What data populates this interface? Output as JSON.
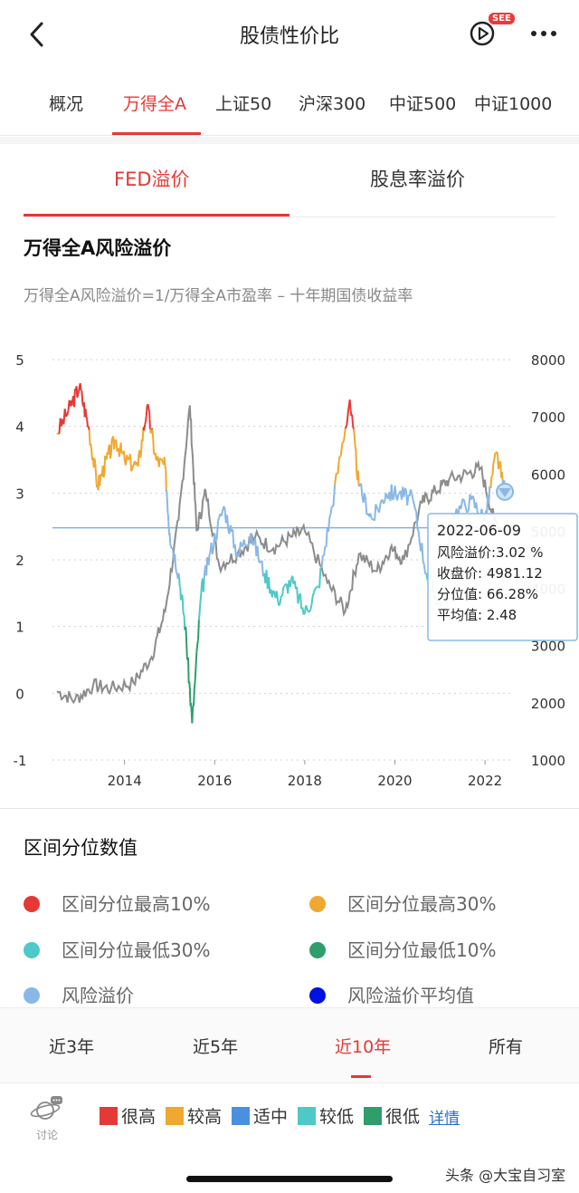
{
  "header": {
    "title": "股债性价比",
    "see_badge": "SEE"
  },
  "index_tabs": [
    "概况",
    "万得全A",
    "上证50",
    "沪深300",
    "中证500",
    "中证1000"
  ],
  "sub_tabs": [
    "FED溢价",
    "股息率溢价"
  ],
  "section": {
    "title": "万得全A风险溢价",
    "formula": "万得全A风险溢价=1/万得全A市盈率 – 十年期国债收益率"
  },
  "chart_data": {
    "type": "line",
    "x_ticks": [
      "2014",
      "2016",
      "2018",
      "2020",
      "2022"
    ],
    "y_left_ticks": [
      "5",
      "4",
      "3",
      "2",
      "1",
      "0",
      "-1"
    ],
    "y_right_ticks": [
      "8000",
      "7000",
      "6000",
      "5000",
      "4000",
      "3000",
      "2000",
      "1000"
    ],
    "y_left_range": [
      -1,
      5
    ],
    "y_right_range": [
      1000,
      8000
    ],
    "average": 2.48,
    "series": [
      {
        "name": "风险溢价",
        "points": [
          [
            2012.5,
            3.9
          ],
          [
            2012.8,
            4.3
          ],
          [
            2013.0,
            4.6
          ],
          [
            2013.2,
            4.0
          ],
          [
            2013.4,
            3.1
          ],
          [
            2013.6,
            3.5
          ],
          [
            2013.8,
            3.8
          ],
          [
            2014.0,
            3.5
          ],
          [
            2014.3,
            3.4
          ],
          [
            2014.5,
            4.3
          ],
          [
            2014.7,
            3.5
          ],
          [
            2014.9,
            3.4
          ],
          [
            2015.0,
            2.4
          ],
          [
            2015.2,
            1.8
          ],
          [
            2015.35,
            1.0
          ],
          [
            2015.5,
            -0.45
          ],
          [
            2015.7,
            1.5
          ],
          [
            2015.9,
            2.1
          ],
          [
            2016.2,
            2.8
          ],
          [
            2016.5,
            2.1
          ],
          [
            2016.8,
            2.4
          ],
          [
            2017.1,
            1.8
          ],
          [
            2017.4,
            1.4
          ],
          [
            2017.7,
            1.7
          ],
          [
            2018.0,
            1.2
          ],
          [
            2018.3,
            1.6
          ],
          [
            2018.6,
            2.8
          ],
          [
            2019.0,
            4.4
          ],
          [
            2019.2,
            3.1
          ],
          [
            2019.5,
            2.6
          ],
          [
            2019.8,
            3.0
          ],
          [
            2020.1,
            3.0
          ],
          [
            2020.4,
            2.9
          ],
          [
            2020.7,
            1.8
          ],
          [
            2021.0,
            1.3
          ],
          [
            2021.3,
            2.7
          ],
          [
            2021.7,
            2.9
          ],
          [
            2022.0,
            2.6
          ],
          [
            2022.25,
            3.6
          ],
          [
            2022.44,
            3.02
          ]
        ]
      },
      {
        "name": "收盘价",
        "points": [
          [
            2012.5,
            2200
          ],
          [
            2012.9,
            2050
          ],
          [
            2013.3,
            2300
          ],
          [
            2013.7,
            2250
          ],
          [
            2014.2,
            2350
          ],
          [
            2014.6,
            2800
          ],
          [
            2014.9,
            3600
          ],
          [
            2015.2,
            5200
          ],
          [
            2015.45,
            7200
          ],
          [
            2015.6,
            5000
          ],
          [
            2015.8,
            5700
          ],
          [
            2016.1,
            4400
          ],
          [
            2016.5,
            4600
          ],
          [
            2016.9,
            4900
          ],
          [
            2017.3,
            4700
          ],
          [
            2017.7,
            4900
          ],
          [
            2018.0,
            5000
          ],
          [
            2018.5,
            4100
          ],
          [
            2018.9,
            3600
          ],
          [
            2019.2,
            4600
          ],
          [
            2019.6,
            4300
          ],
          [
            2019.9,
            4700
          ],
          [
            2020.2,
            4500
          ],
          [
            2020.6,
            5500
          ],
          [
            2020.9,
            5700
          ],
          [
            2021.2,
            5900
          ],
          [
            2021.6,
            6000
          ],
          [
            2021.9,
            6100
          ],
          [
            2022.2,
            5200
          ],
          [
            2022.44,
            4981.12
          ]
        ]
      }
    ],
    "tooltip": {
      "date": "2022-06-09",
      "lines": [
        "风险溢价:3.02 %",
        "收盘价:  4981.12",
        "分位值:  66.28%",
        "平均值:  2.48"
      ]
    }
  },
  "legend": {
    "title": "区间分位数值",
    "items": [
      {
        "label": "区间分位最高10%",
        "color": "#e53935"
      },
      {
        "label": "区间分位最高30%",
        "color": "#f0a830"
      },
      {
        "label": "区间分位最低30%",
        "color": "#4fc8c8"
      },
      {
        "label": "区间分位最低10%",
        "color": "#2e9e6b"
      },
      {
        "label": "风险溢价",
        "color": "#8ab8e6"
      },
      {
        "label": "风险溢价平均值",
        "color": "#0010e0"
      }
    ]
  },
  "periods": [
    "近3年",
    "近5年",
    "近10年",
    "所有"
  ],
  "bottom": {
    "discuss": "讨论",
    "levels": [
      {
        "label": "很高",
        "color": "#e53935"
      },
      {
        "label": "较高",
        "color": "#f0a830"
      },
      {
        "label": "适中",
        "color": "#4a90e2"
      },
      {
        "label": "较低",
        "color": "#4fc8c8"
      },
      {
        "label": "很低",
        "color": "#2e9e6b"
      }
    ],
    "detail": "详情",
    "watermark": "头条 @大宝自习室"
  }
}
